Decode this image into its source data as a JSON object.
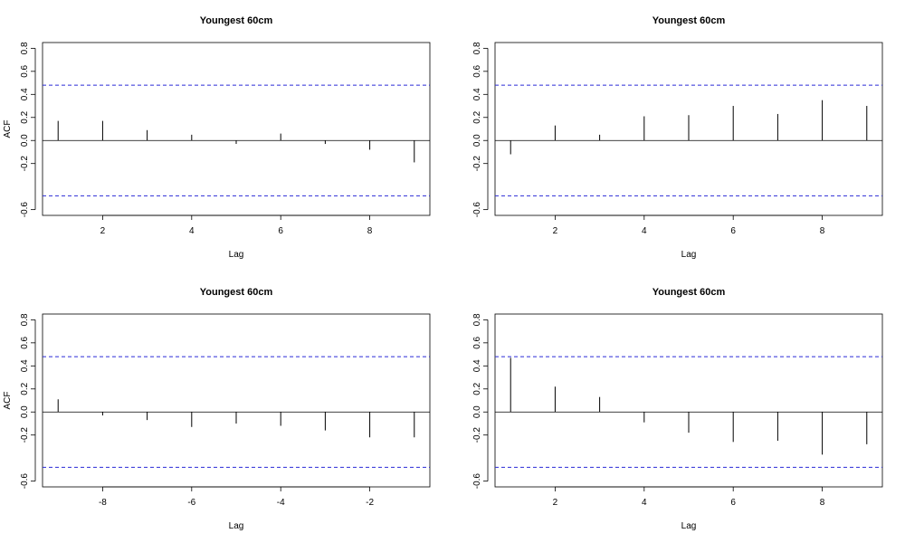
{
  "chart_data": [
    {
      "type": "bar",
      "title": "Youngest 60cm",
      "xlabel": "Lag",
      "ylabel": "ACF",
      "ylim": [
        -0.65,
        0.85
      ],
      "xlim": [
        0.65,
        9.35
      ],
      "yticks": [
        -0.6,
        -0.2,
        0.0,
        0.2,
        0.4,
        0.6,
        0.8
      ],
      "ytick_labels": [
        "-0.6",
        "-0.2",
        "0.0",
        "0.2",
        "0.4",
        "0.6",
        "0.8"
      ],
      "xticks": [
        2,
        4,
        6,
        8
      ],
      "xtick_labels": [
        "2",
        "4",
        "6",
        "8"
      ],
      "ci": [
        0.48,
        -0.48
      ],
      "x": [
        1,
        2,
        3,
        4,
        5,
        6,
        7,
        8,
        9
      ],
      "values": [
        0.17,
        0.17,
        0.09,
        0.05,
        -0.03,
        0.06,
        -0.03,
        -0.08,
        -0.19
      ]
    },
    {
      "type": "bar",
      "title": "Youngest 60cm",
      "xlabel": "Lag",
      "ylabel": "",
      "ylim": [
        -0.65,
        0.85
      ],
      "xlim": [
        0.65,
        9.35
      ],
      "yticks": [
        -0.6,
        -0.2,
        0.0,
        0.2,
        0.4,
        0.6,
        0.8
      ],
      "ytick_labels": [
        "-0.6",
        "-0.2",
        "0.0",
        "0.2",
        "0.4",
        "0.6",
        "0.8"
      ],
      "xticks": [
        2,
        4,
        6,
        8
      ],
      "xtick_labels": [
        "2",
        "4",
        "6",
        "8"
      ],
      "ci": [
        0.48,
        -0.48
      ],
      "x": [
        1,
        2,
        3,
        4,
        5,
        6,
        7,
        8,
        9
      ],
      "values": [
        -0.12,
        0.13,
        0.05,
        0.21,
        0.22,
        0.3,
        0.23,
        0.35,
        0.3
      ]
    },
    {
      "type": "bar",
      "title": "Youngest 60cm",
      "xlabel": "Lag",
      "ylabel": "ACF",
      "ylim": [
        -0.65,
        0.85
      ],
      "xlim": [
        -9.35,
        -0.65
      ],
      "yticks": [
        -0.6,
        -0.2,
        0.0,
        0.2,
        0.4,
        0.6,
        0.8
      ],
      "ytick_labels": [
        "-0.6",
        "-0.2",
        "0.0",
        "0.2",
        "0.4",
        "0.6",
        "0.8"
      ],
      "xticks": [
        -8,
        -6,
        -4,
        -2
      ],
      "xtick_labels": [
        "-8",
        "-6",
        "-4",
        "-2"
      ],
      "ci": [
        0.48,
        -0.48
      ],
      "x": [
        -9,
        -8,
        -7,
        -6,
        -5,
        -4,
        -3,
        -2,
        -1
      ],
      "values": [
        0.11,
        -0.03,
        -0.07,
        -0.13,
        -0.1,
        -0.12,
        -0.16,
        -0.22,
        -0.22
      ]
    },
    {
      "type": "bar",
      "title": "Youngest 60cm",
      "xlabel": "Lag",
      "ylabel": "",
      "ylim": [
        -0.65,
        0.85
      ],
      "xlim": [
        0.65,
        9.35
      ],
      "yticks": [
        -0.6,
        -0.2,
        0.0,
        0.2,
        0.4,
        0.6,
        0.8
      ],
      "ytick_labels": [
        "-0.6",
        "-0.2",
        "0.0",
        "0.2",
        "0.4",
        "0.6",
        "0.8"
      ],
      "xticks": [
        2,
        4,
        6,
        8
      ],
      "xtick_labels": [
        "2",
        "4",
        "6",
        "8"
      ],
      "ci": [
        0.48,
        -0.48
      ],
      "x": [
        1,
        2,
        3,
        4,
        5,
        6,
        7,
        8,
        9
      ],
      "values": [
        0.47,
        0.22,
        0.13,
        -0.09,
        -0.18,
        -0.26,
        -0.25,
        -0.37,
        -0.28
      ]
    }
  ]
}
